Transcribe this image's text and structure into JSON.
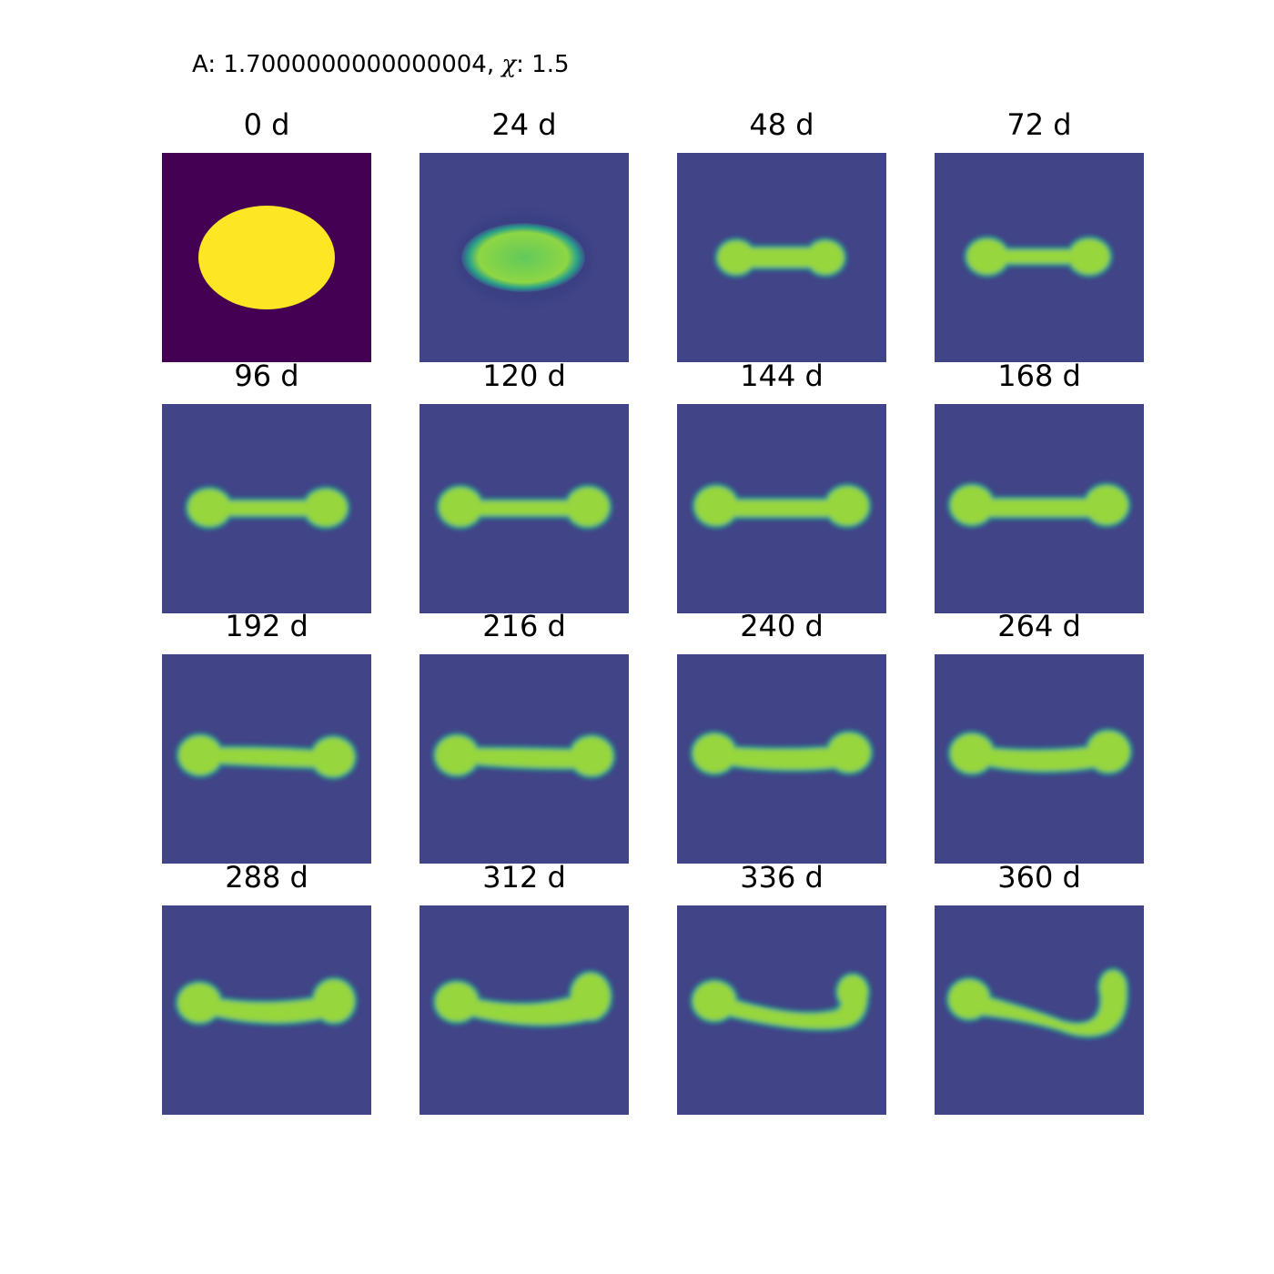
{
  "figure": {
    "suptitle_prefix": "A: 1.7000000000000004, ",
    "suptitle_chi_symbol": "χ",
    "suptitle_suffix": ": 1.5",
    "colormap": "viridis",
    "colors": {
      "initial_background": "#440154",
      "initial_blob": "#fde725",
      "background": "#414487",
      "blob_core": "#9bd53a",
      "blob_edge": "#2a9a8a",
      "blob_rim": "#3b528b"
    }
  },
  "panels": [
    {
      "label": "0 d"
    },
    {
      "label": "24 d"
    },
    {
      "label": "48 d"
    },
    {
      "label": "72 d"
    },
    {
      "label": "96 d"
    },
    {
      "label": "120 d"
    },
    {
      "label": "144 d"
    },
    {
      "label": "168 d"
    },
    {
      "label": "192 d"
    },
    {
      "label": "216 d"
    },
    {
      "label": "240 d"
    },
    {
      "label": "264 d"
    },
    {
      "label": "288 d"
    },
    {
      "label": "312 d"
    },
    {
      "label": "336 d"
    },
    {
      "label": "360 d"
    }
  ]
}
